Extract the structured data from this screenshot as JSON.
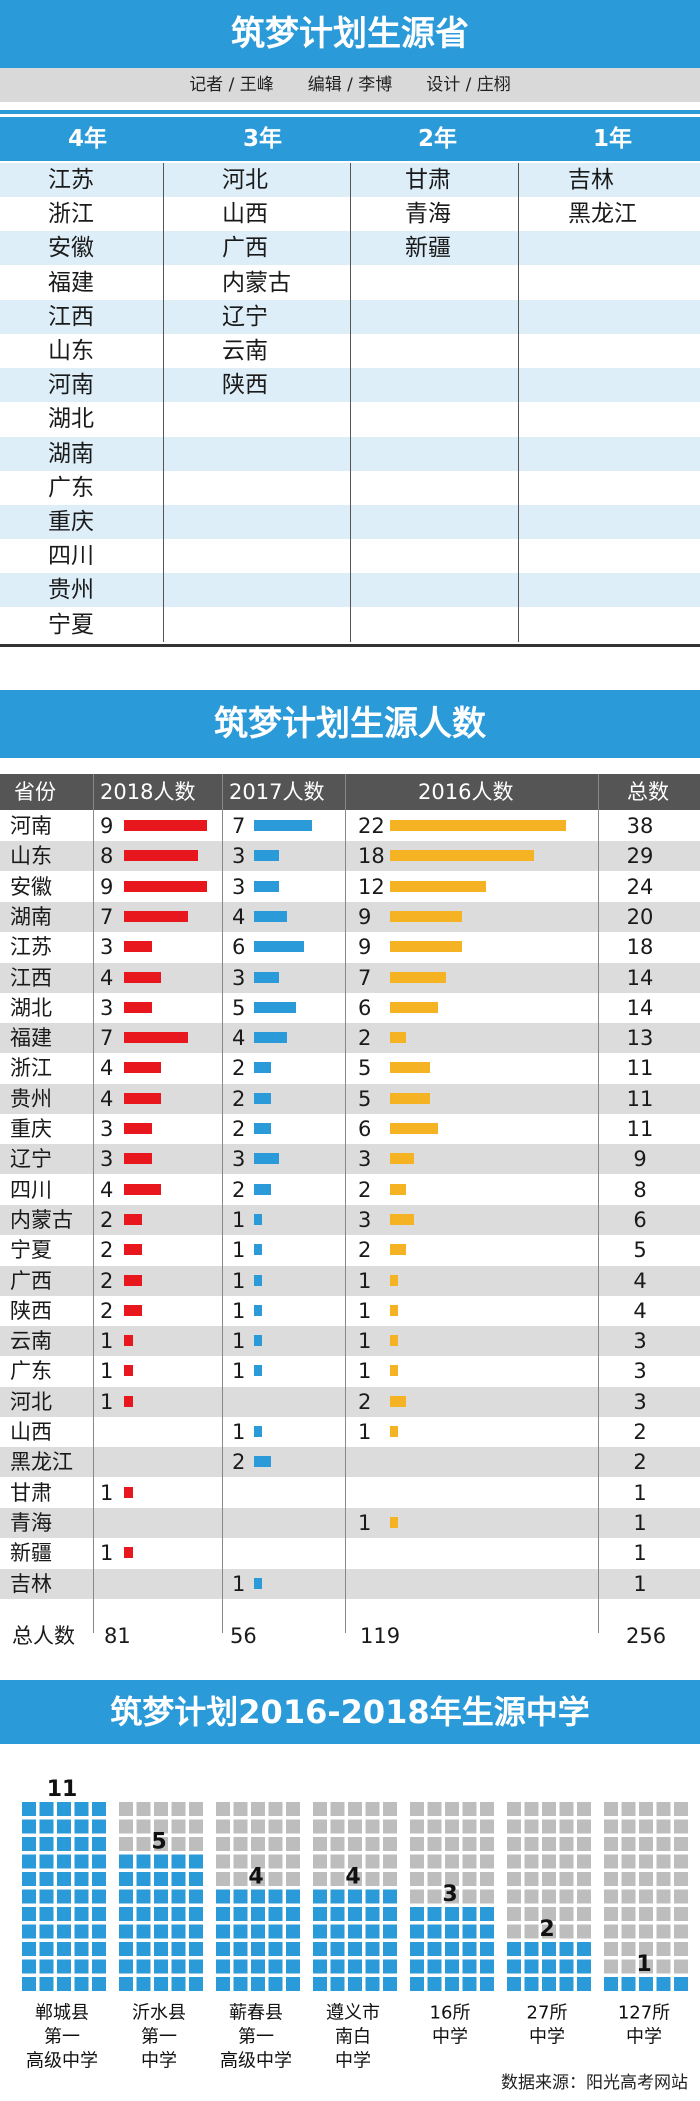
{
  "section1": {
    "title": "筑梦计划生源省",
    "credits": "记者 / 王峰　　编辑 / 李博　　设计 / 庄栩",
    "columns": [
      {
        "header": "4年",
        "provinces": [
          "江苏",
          "浙江",
          "安徽",
          "福建",
          "江西",
          "山东",
          "河南",
          "湖北",
          "湖南",
          "广东",
          "重庆",
          "四川",
          "贵州",
          "宁夏"
        ]
      },
      {
        "header": "3年",
        "provinces": [
          "河北",
          "山西",
          "广西",
          "内蒙古",
          "辽宁",
          "云南",
          "陕西"
        ]
      },
      {
        "header": "2年",
        "provinces": [
          "甘肃",
          "青海",
          "新疆"
        ]
      },
      {
        "header": "1年",
        "provinces": [
          "吉林",
          "黑龙江"
        ]
      }
    ]
  },
  "section2": {
    "title": "筑梦计划生源人数",
    "headers": {
      "province": "省份",
      "y2018": "2018人数",
      "y2017": "2017人数",
      "y2016": "2016人数",
      "total": "总数"
    },
    "colors": {
      "y2018": "#e8171e",
      "y2017": "#2b9ad8",
      "y2016": "#f5b324"
    },
    "totals_label": "总人数",
    "totals": {
      "y2018": "81",
      "y2017": "56",
      "y2016": "119",
      "total": "256"
    }
  },
  "chart_data": [
    {
      "type": "bar",
      "title": "筑梦计划生源人数",
      "categories": [
        "河南",
        "山东",
        "安徽",
        "湖南",
        "江苏",
        "江西",
        "湖北",
        "福建",
        "浙江",
        "贵州",
        "重庆",
        "辽宁",
        "四川",
        "内蒙古",
        "宁夏",
        "广西",
        "陕西",
        "云南",
        "广东",
        "河北",
        "山西",
        "黑龙江",
        "甘肃",
        "青海",
        "新疆",
        "吉林"
      ],
      "series": [
        {
          "name": "2018人数",
          "values": [
            9,
            8,
            9,
            7,
            3,
            4,
            3,
            7,
            4,
            4,
            3,
            3,
            4,
            2,
            2,
            2,
            2,
            1,
            1,
            1,
            null,
            null,
            1,
            null,
            1,
            null
          ]
        },
        {
          "name": "2017人数",
          "values": [
            7,
            3,
            3,
            4,
            6,
            3,
            5,
            4,
            2,
            2,
            2,
            3,
            2,
            1,
            1,
            1,
            1,
            1,
            1,
            null,
            1,
            2,
            null,
            null,
            null,
            1
          ]
        },
        {
          "name": "2016人数",
          "values": [
            22,
            18,
            12,
            9,
            9,
            7,
            6,
            2,
            5,
            5,
            6,
            3,
            2,
            3,
            2,
            1,
            1,
            1,
            1,
            2,
            1,
            null,
            null,
            1,
            null,
            null
          ]
        }
      ],
      "totals": [
        38,
        29,
        24,
        20,
        18,
        14,
        14,
        13,
        11,
        11,
        11,
        9,
        8,
        6,
        5,
        4,
        4,
        3,
        3,
        3,
        2,
        2,
        1,
        1,
        1,
        1
      ]
    },
    {
      "type": "bar",
      "title": "筑梦计划2016-2018年生源中学",
      "categories": [
        "郸城县第一高级中学",
        "沂水县第一中学",
        "蕲春县第一高级中学",
        "遵义市南白中学",
        "16所中学",
        "27所中学",
        "127所中学"
      ],
      "category_lines": [
        [
          "郸城县",
          "第一",
          "高级中学"
        ],
        [
          "沂水县",
          "第一",
          "中学"
        ],
        [
          "蕲春县",
          "第一",
          "高级中学"
        ],
        [
          "遵义市",
          "南白",
          "中学"
        ],
        [
          "16所",
          "中学"
        ],
        [
          "27所",
          "中学"
        ],
        [
          "127所",
          "中学"
        ]
      ],
      "values": [
        11,
        5,
        4,
        4,
        3,
        2,
        1
      ],
      "colors": {
        "filled": "#2b9ad8",
        "empty": "#bdbdbd"
      }
    }
  ],
  "source": "数据来源：阳光高考网站"
}
